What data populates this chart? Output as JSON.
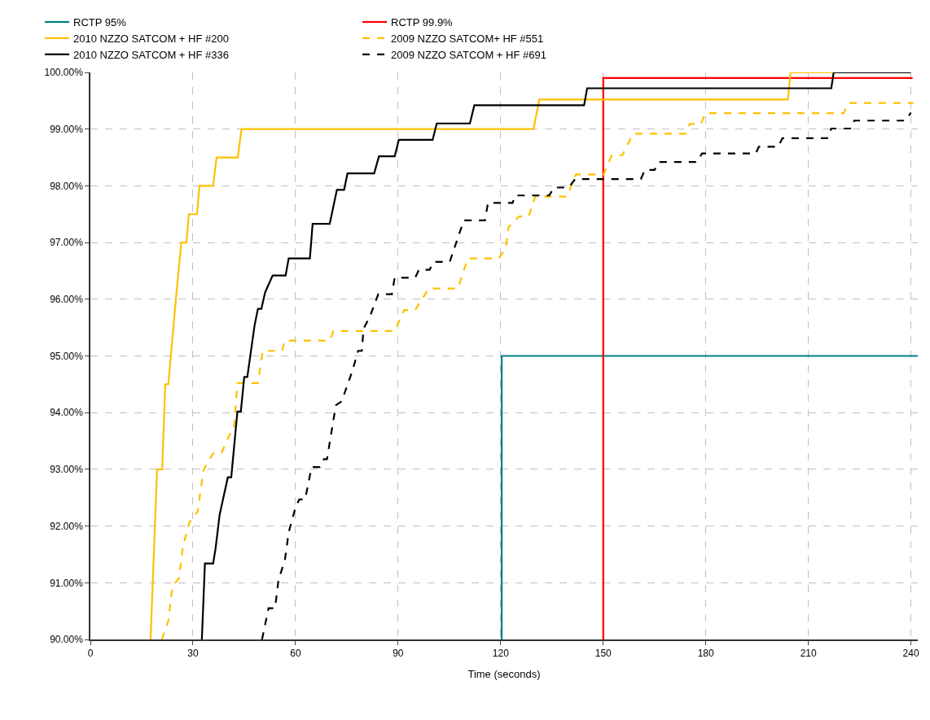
{
  "chart_data": {
    "type": "line",
    "xlabel": "Time (seconds)",
    "xlim": [
      0,
      242
    ],
    "xticks": [
      0,
      30,
      60,
      90,
      120,
      150,
      180,
      210,
      240
    ],
    "ylim": [
      90,
      100
    ],
    "yticks": [
      {
        "value": 90,
        "label": "90.00%"
      },
      {
        "value": 91,
        "label": "91.00%"
      },
      {
        "value": 92,
        "label": "92.00%"
      },
      {
        "value": 93,
        "label": "93.00%"
      },
      {
        "value": 94,
        "label": "94.00%"
      },
      {
        "value": 95,
        "label": "95.00%"
      },
      {
        "value": 96,
        "label": "96.00%"
      },
      {
        "value": 97,
        "label": "97.00%"
      },
      {
        "value": 98,
        "label": "98.00%"
      },
      {
        "value": 99,
        "label": "99.00%"
      },
      {
        "value": 100,
        "label": "100.00%"
      }
    ],
    "grid": true,
    "legend": "top",
    "marker": "none",
    "series": [
      {
        "name": "RCTP 95%",
        "color": "#008080",
        "line_style": "solid",
        "x": [
          120.3,
          120.3,
          242
        ],
        "values": [
          90,
          95,
          95
        ]
      },
      {
        "name": "RCTP 99.9%",
        "color": "#ff0000",
        "line_style": "solid",
        "x": [
          150,
          150,
          240.5
        ],
        "values": [
          90,
          99.9,
          99.9
        ]
      },
      {
        "name": "2010 NZZO SATCOM + HF #200",
        "color": "#ffc000",
        "line_style": "solid",
        "x": [
          17.6,
          19.5,
          21,
          21.9,
          22.8,
          25,
          26.6,
          28.1,
          28.8,
          31.2,
          31.9,
          35.9,
          36.9,
          43.1,
          44.2,
          129.6,
          131.3,
          204,
          204.8,
          240
        ],
        "values": [
          90,
          93.0,
          93.0,
          94.5,
          94.5,
          96.0,
          97.0,
          97.0,
          97.5,
          97.5,
          98.0,
          98.0,
          98.5,
          98.5,
          99.0,
          99.0,
          99.52,
          99.52,
          100,
          100
        ]
      },
      {
        "name": "2009 NZZO SATCOM+ HF #551",
        "color": "#ffc000",
        "line_style": "dashed",
        "x": [
          20.9,
          22.8,
          24,
          25.9,
          27.1,
          29,
          31.4,
          33,
          33.8,
          35.9,
          38.3,
          40.7,
          41.9,
          43,
          49,
          50.4,
          56.1,
          56.8,
          70,
          71.1,
          89,
          91.8,
          95,
          99,
          107.5,
          110.4,
          119.4,
          121.5,
          122.3,
          125.4,
          128.2,
          130.1,
          139.4,
          142,
          150.1,
          152.5,
          155.6,
          158.7,
          174.1,
          175.3,
          178.6,
          179.8,
          220.3,
          221.7,
          240.7
        ],
        "values": [
          90,
          90.33,
          90.94,
          91.08,
          91.65,
          92.07,
          92.26,
          92.97,
          93.07,
          93.28,
          93.28,
          93.61,
          93.68,
          94.52,
          94.52,
          95.09,
          95.09,
          95.27,
          95.27,
          95.44,
          95.44,
          95.81,
          95.81,
          96.19,
          96.19,
          96.72,
          96.72,
          96.9,
          97.27,
          97.46,
          97.46,
          97.81,
          97.81,
          98.2,
          98.2,
          98.54,
          98.54,
          98.92,
          98.92,
          99.09,
          99.09,
          99.28,
          99.28,
          99.46,
          99.46
        ]
      },
      {
        "name": "2010 NZZO SATCOM + HF #336",
        "color": "#000000",
        "line_style": "solid",
        "x": [
          32.6,
          33.5,
          35.9,
          36.6,
          37.8,
          40.2,
          41.2,
          43,
          44,
          45,
          45.9,
          48,
          49,
          50,
          51.1,
          53.3,
          57.1,
          58,
          64.2,
          65,
          70,
          72.1,
          74.2,
          75.2,
          83,
          84.4,
          89,
          90.2,
          100.1,
          101.3,
          111,
          112.3,
          144.4,
          145.3,
          216.7,
          217.4,
          240
        ],
        "values": [
          90,
          91.34,
          91.34,
          91.6,
          92.2,
          92.86,
          92.86,
          94.02,
          94.02,
          94.63,
          94.63,
          95.53,
          95.83,
          95.83,
          96.12,
          96.42,
          96.42,
          96.72,
          96.72,
          97.33,
          97.33,
          97.93,
          97.93,
          98.22,
          98.22,
          98.52,
          98.52,
          98.81,
          98.81,
          99.1,
          99.1,
          99.42,
          99.42,
          99.72,
          99.72,
          100,
          100
        ]
      },
      {
        "name": "2009 NZZO SATCOM + HF #691",
        "color": "#000000",
        "line_style": "dashed",
        "x": [
          50.2,
          52.1,
          54,
          55,
          56.9,
          58,
          60,
          61.1,
          62.8,
          64.7,
          67.1,
          68.3,
          69.2,
          71.8,
          73.5,
          76.6,
          78.3,
          79.4,
          79.9,
          81.8,
          84.2,
          88.2,
          89,
          95,
          96.1,
          99.2,
          100.4,
          105.1,
          109.2,
          115.4,
          116.3,
          123.5,
          124.2,
          134.2,
          135.6,
          139.9,
          141.8,
          161,
          162.2,
          165,
          166.3,
          177.4,
          178.9,
          194.6,
          195.5,
          201.2,
          202.4,
          215.5,
          216.7,
          222.6,
          223.4,
          238.3,
          240
        ],
        "values": [
          90,
          90.55,
          90.55,
          91.04,
          91.41,
          91.89,
          92.33,
          92.47,
          92.47,
          93.04,
          93.04,
          93.18,
          93.18,
          94.13,
          94.2,
          94.73,
          95.09,
          95.09,
          95.48,
          95.7,
          96.09,
          96.09,
          96.38,
          96.38,
          96.52,
          96.52,
          96.66,
          96.66,
          97.39,
          97.39,
          97.7,
          97.7,
          97.83,
          97.83,
          97.97,
          97.97,
          98.12,
          98.12,
          98.28,
          98.28,
          98.42,
          98.42,
          98.57,
          98.57,
          98.69,
          98.69,
          98.84,
          98.84,
          99.01,
          99.01,
          99.15,
          99.15,
          99.29
        ]
      }
    ]
  }
}
